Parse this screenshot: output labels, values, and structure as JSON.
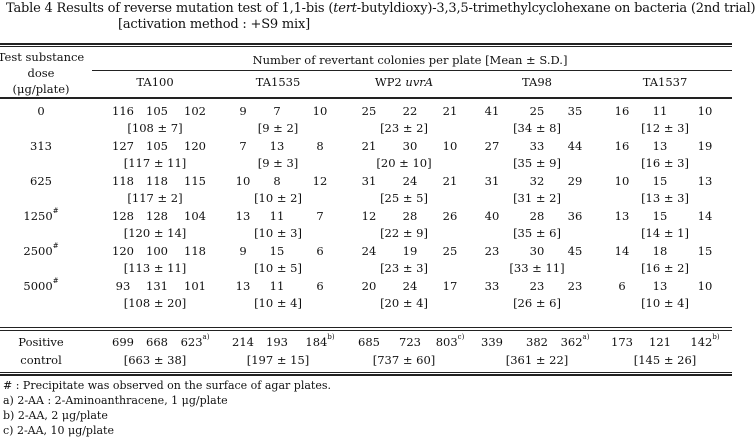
{
  "title": {
    "line1_prefix": "Table 4   Results of reverse mutation test of 1,1-bis (",
    "line1_italic": "tert",
    "line1_suffix": "-butyldioxy)-3,3,5-trimethylcyclohexane on bacteria (2nd trial)",
    "line2": "[activation method : +S9 mix]"
  },
  "header": {
    "dose_line1": "Test substance",
    "dose_line2": "dose",
    "dose_line3": "(μg/plate)",
    "group_label": "Number of revertant colonies per plate [Mean ± S.D.]",
    "strains": [
      {
        "prefix": "TA100",
        "italic": ""
      },
      {
        "prefix": "TA1535",
        "italic": ""
      },
      {
        "prefix": "WP2 ",
        "italic": "uvrA"
      },
      {
        "prefix": "TA98",
        "italic": ""
      },
      {
        "prefix": "TA1537",
        "italic": ""
      }
    ]
  },
  "rows": [
    {
      "dose": "0",
      "mark": "",
      "strains": [
        {
          "values": [
            "116",
            "105",
            "102"
          ],
          "mean": "[108 ± 7]"
        },
        {
          "values": [
            "9",
            "7",
            "10"
          ],
          "mean": "[9 ± 2]"
        },
        {
          "values": [
            "25",
            "22",
            "21"
          ],
          "mean": "[23 ± 2]"
        },
        {
          "values": [
            "41",
            "25",
            "35"
          ],
          "mean": "[34 ± 8]"
        },
        {
          "values": [
            "16",
            "11",
            "10"
          ],
          "mean": "[12 ± 3]"
        }
      ]
    },
    {
      "dose": "313",
      "mark": "",
      "strains": [
        {
          "values": [
            "127",
            "105",
            "120"
          ],
          "mean": "[117 ± 11]"
        },
        {
          "values": [
            "7",
            "13",
            "8"
          ],
          "mean": "[9 ± 3]"
        },
        {
          "values": [
            "21",
            "30",
            "10"
          ],
          "mean": "[20 ± 10]"
        },
        {
          "values": [
            "27",
            "33",
            "44"
          ],
          "mean": "[35 ± 9]"
        },
        {
          "values": [
            "16",
            "13",
            "19"
          ],
          "mean": "[16 ± 3]"
        }
      ]
    },
    {
      "dose": "625",
      "mark": "",
      "strains": [
        {
          "values": [
            "118",
            "118",
            "115"
          ],
          "mean": "[117 ± 2]"
        },
        {
          "values": [
            "10",
            "8",
            "12"
          ],
          "mean": "[10 ± 2]"
        },
        {
          "values": [
            "31",
            "24",
            "21"
          ],
          "mean": "[25 ± 5]"
        },
        {
          "values": [
            "31",
            "32",
            "29"
          ],
          "mean": "[31 ± 2]"
        },
        {
          "values": [
            "10",
            "15",
            "13"
          ],
          "mean": "[13 ± 3]"
        }
      ]
    },
    {
      "dose": "1250",
      "mark": "#",
      "strains": [
        {
          "values": [
            "128",
            "128",
            "104"
          ],
          "mean": "[120 ± 14]"
        },
        {
          "values": [
            "13",
            "11",
            "7"
          ],
          "mean": "[10 ± 3]"
        },
        {
          "values": [
            "12",
            "28",
            "26"
          ],
          "mean": "[22 ± 9]"
        },
        {
          "values": [
            "40",
            "28",
            "36"
          ],
          "mean": "[35 ± 6]"
        },
        {
          "values": [
            "13",
            "15",
            "14"
          ],
          "mean": "[14 ± 1]"
        }
      ]
    },
    {
      "dose": "2500",
      "mark": "#",
      "strains": [
        {
          "values": [
            "120",
            "100",
            "118"
          ],
          "mean": "[113 ± 11]"
        },
        {
          "values": [
            "9",
            "15",
            "6"
          ],
          "mean": "[10 ± 5]"
        },
        {
          "values": [
            "24",
            "19",
            "25"
          ],
          "mean": "[23 ± 3]"
        },
        {
          "values": [
            "23",
            "30",
            "45"
          ],
          "mean": "[33 ± 11]"
        },
        {
          "values": [
            "14",
            "18",
            "15"
          ],
          "mean": "[16 ± 2]"
        }
      ]
    },
    {
      "dose": "5000",
      "mark": "#",
      "strains": [
        {
          "values": [
            "93",
            "131",
            "101"
          ],
          "mean": "[108 ± 20]"
        },
        {
          "values": [
            "13",
            "11",
            "6"
          ],
          "mean": "[10 ± 4]"
        },
        {
          "values": [
            "20",
            "24",
            "17"
          ],
          "mean": "[20 ± 4]"
        },
        {
          "values": [
            "33",
            "23",
            "23"
          ],
          "mean": "[26 ± 6]"
        },
        {
          "values": [
            "6",
            "13",
            "10"
          ],
          "mean": "[10 ± 4]"
        }
      ]
    }
  ],
  "positive": {
    "label1": "Positive",
    "label2": "control",
    "strains": [
      {
        "values": [
          "699",
          "668",
          "623"
        ],
        "sup": "a)",
        "mean": "[663 ± 38]"
      },
      {
        "values": [
          "214",
          "193",
          "184"
        ],
        "sup": "b)",
        "mean": "[197 ± 15]"
      },
      {
        "values": [
          "685",
          "723",
          "803"
        ],
        "sup": "c)",
        "mean": "[737 ± 60]"
      },
      {
        "values": [
          "339",
          "382",
          "362"
        ],
        "sup": "a)",
        "mean": "[361 ± 22]"
      },
      {
        "values": [
          "173",
          "121",
          "142"
        ],
        "sup": "b)",
        "mean": "[145 ± 26]"
      }
    ]
  },
  "footnotes": [
    "# : Precipitate was observed on the surface of agar plates.",
    "a) 2-AA : 2-Aminoanthracene, 1 μg/plate",
    "b) 2-AA, 2 μg/plate",
    "c) 2-AA, 10 μg/plate"
  ]
}
